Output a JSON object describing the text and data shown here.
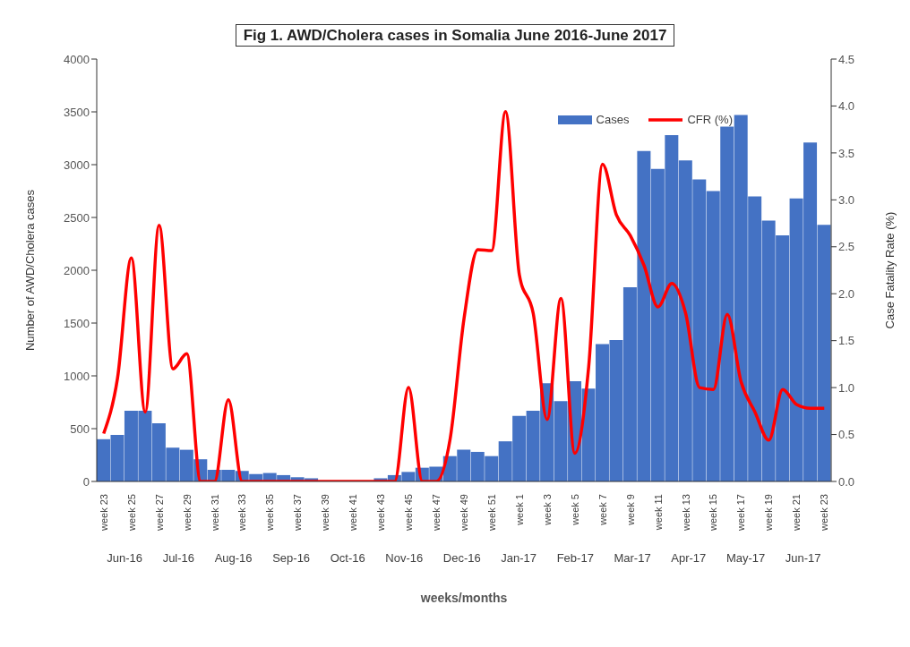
{
  "chart_data": {
    "type": "bar",
    "title": "Fig 1. AWD/Cholera cases in Somalia June 2016-June 2017",
    "xlabel": "weeks/months",
    "ylabel": "Number of AWD/Cholera cases",
    "y2label": "Case Fatality Rate (%)",
    "categories": [
      "week 23",
      null,
      "week 25",
      null,
      "week 27",
      null,
      "week 29",
      null,
      "week 31",
      null,
      "week 33",
      null,
      "week 35",
      null,
      "week 37",
      null,
      "week 39",
      null,
      "week 41",
      null,
      "week 43",
      null,
      "week 45",
      null,
      "week 47",
      null,
      "week 49",
      null,
      "week 51",
      null,
      "week 1",
      null,
      "week 3",
      null,
      "week 5",
      null,
      "week 7",
      null,
      "week 9",
      null,
      "week 11",
      null,
      "week 13",
      null,
      "week 15",
      null,
      "week 17",
      null,
      "week 19",
      null,
      "week 21",
      null,
      "week 23"
    ],
    "series": [
      {
        "name": "Cases",
        "color": "#4472c4",
        "values": [
          400,
          440,
          670,
          670,
          550,
          320,
          300,
          210,
          110,
          110,
          100,
          70,
          80,
          60,
          40,
          30,
          null,
          null,
          null,
          null,
          30,
          60,
          90,
          130,
          140,
          240,
          300,
          280,
          240,
          380,
          620,
          670,
          930,
          760,
          950,
          880,
          1300,
          1340,
          1840,
          3130,
          2960,
          3280,
          3040,
          2860,
          2750,
          3360,
          3470,
          2700,
          2470,
          2330,
          2680,
          3210,
          2430
        ]
      },
      {
        "name": "CFR (%)",
        "type": "line",
        "axis": "y2",
        "color": "#ff0000",
        "values": [
          0.51,
          1.1,
          2.38,
          0.74,
          2.73,
          1.2,
          1.36,
          0,
          0,
          0.87,
          0,
          0,
          0,
          0,
          0,
          0,
          0,
          0,
          0,
          0,
          0,
          0,
          1.0,
          0,
          0,
          0.45,
          1.73,
          2.47,
          2.46,
          3.94,
          2.2,
          1.79,
          0.66,
          1.95,
          0.3,
          1.22,
          3.38,
          2.84,
          2.62,
          2.3,
          1.86,
          2.11,
          1.79,
          1.0,
          0.98,
          1.78,
          1.06,
          0.74,
          0.44,
          0.98,
          0.82,
          0.78,
          0.78
        ]
      }
    ],
    "ylim": [
      0,
      4000
    ],
    "yticks": [
      0,
      500,
      1000,
      1500,
      2000,
      2500,
      3000,
      3500,
      4000
    ],
    "y2lim": [
      0,
      4.5
    ],
    "y2ticks": [
      {
        "value": 0,
        "label": "0.0"
      },
      {
        "value": 0.5,
        "label": "0.5"
      },
      {
        "value": 1,
        "label": "1.0"
      },
      {
        "value": 1.5,
        "label": "1.5"
      },
      {
        "value": 2,
        "label": "2.0"
      },
      {
        "value": 2.5,
        "label": "2.5"
      },
      {
        "value": 3,
        "label": "3.0"
      },
      {
        "value": 3.5,
        "label": "3.5"
      },
      {
        "value": 4,
        "label": "4.0"
      },
      {
        "value": 4.5,
        "label": "4.5"
      }
    ],
    "annotations": [
      "Jun-16",
      "Jul-16",
      "Aug-16",
      "Sep-16",
      "Oct-16",
      "Nov-16",
      "Dec-16",
      "Jan-17",
      "Feb-17",
      "Mar-17",
      "Apr-17",
      "May-17",
      "Jun-17"
    ],
    "legend": "top right",
    "grid": false,
    "line_style": "solid",
    "marker": "none"
  }
}
